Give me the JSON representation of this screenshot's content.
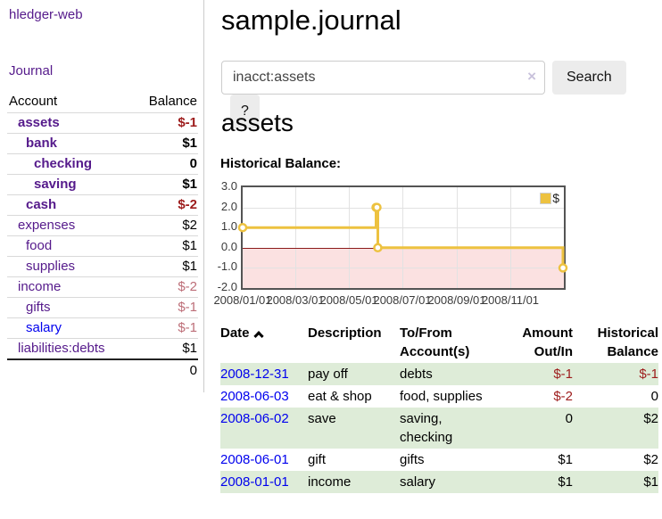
{
  "app": {
    "title": "hledger-web"
  },
  "colors": {
    "link_purple": "#551a8b",
    "link_blue": "#0000ee",
    "negative_strong": "#9d1c1c",
    "negative_soft": "#bd6e78",
    "stripe_green": "#deecd8",
    "series_yellow": "#edc240",
    "chart_negative_fill": "#fbe1e1",
    "chart_zero_line": "#8b1a1a",
    "chart_border": "#545454",
    "grid_line": "#e2e2e2"
  },
  "sidebar": {
    "journal_label": "Journal",
    "accounts_table": {
      "headers": {
        "account": "Account",
        "balance": "Balance"
      },
      "rows": [
        {
          "account": "assets",
          "indent": 0,
          "current": true,
          "balance": "$-1",
          "neg": "strong",
          "link": "purple"
        },
        {
          "account": "bank",
          "indent": 1,
          "current": true,
          "balance": "$1",
          "neg": "none",
          "link": "purple"
        },
        {
          "account": "checking",
          "indent": 2,
          "current": true,
          "balance": "0",
          "neg": "none",
          "link": "purple"
        },
        {
          "account": "saving",
          "indent": 2,
          "current": true,
          "balance": "$1",
          "neg": "none",
          "link": "purple"
        },
        {
          "account": "cash",
          "indent": 1,
          "current": true,
          "balance": "$-2",
          "neg": "strong",
          "link": "purple"
        },
        {
          "account": "expenses",
          "indent": 0,
          "current": false,
          "balance": "$2",
          "neg": "none",
          "link": "purple"
        },
        {
          "account": "food",
          "indent": 1,
          "current": false,
          "balance": "$1",
          "neg": "none",
          "link": "purple"
        },
        {
          "account": "supplies",
          "indent": 1,
          "current": false,
          "balance": "$1",
          "neg": "none",
          "link": "purple"
        },
        {
          "account": "income",
          "indent": 0,
          "current": false,
          "balance": "$-2",
          "neg": "soft",
          "link": "purple"
        },
        {
          "account": "gifts",
          "indent": 1,
          "current": false,
          "balance": "$-1",
          "neg": "soft",
          "link": "purple"
        },
        {
          "account": "salary",
          "indent": 1,
          "current": false,
          "balance": "$-1",
          "neg": "soft",
          "link": "blue"
        },
        {
          "account": "liabilities:debts",
          "indent": 0,
          "current": false,
          "balance": "$1",
          "neg": "none",
          "link": "purple"
        }
      ],
      "total": "0"
    }
  },
  "header": {
    "title": "sample.journal"
  },
  "search": {
    "query": "inacct:assets",
    "clear_icon": "×",
    "button_label": "Search",
    "help_label": "?"
  },
  "account_page": {
    "title": "assets",
    "chart_label": "Historical Balance:"
  },
  "chart_data": {
    "type": "line",
    "step": true,
    "title": "Historical Balance",
    "legend": [
      {
        "label": "$",
        "color": "#edc240"
      }
    ],
    "legend_position": "top-right",
    "grid": true,
    "xlim": [
      0,
      366
    ],
    "ylim": [
      -2,
      3
    ],
    "yticks": [
      {
        "v": 3,
        "label": "3.0"
      },
      {
        "v": 2,
        "label": "2.0"
      },
      {
        "v": 1,
        "label": "1.0"
      },
      {
        "v": 0,
        "label": "0.0"
      },
      {
        "v": -1,
        "label": "-1.0"
      },
      {
        "v": -2,
        "label": "-2.0"
      }
    ],
    "xticks": [
      {
        "v": 0,
        "label": "2008/01/01"
      },
      {
        "v": 60,
        "label": "2008/03/01"
      },
      {
        "v": 121,
        "label": "2008/05/01"
      },
      {
        "v": 182,
        "label": "2008/07/01"
      },
      {
        "v": 244,
        "label": "2008/09/01"
      },
      {
        "v": 305,
        "label": "2008/11/01"
      }
    ],
    "series": [
      {
        "name": "$",
        "color": "#edc240",
        "dates": [
          "2008-01-01",
          "2008-06-01",
          "2008-06-02",
          "2008-06-03",
          "2008-12-31"
        ],
        "x": [
          0,
          152,
          153,
          154,
          365
        ],
        "y": [
          1,
          2,
          2,
          0,
          -1
        ]
      }
    ]
  },
  "register_table": {
    "headers": {
      "date": "Date",
      "description": "Description",
      "accounts": "To/From Account(s)",
      "amount": "Amount Out/In",
      "balance": "Historical Balance"
    },
    "rows": [
      {
        "date": "2008-12-31",
        "description": "pay off",
        "accounts": "debts",
        "amount": "$-1",
        "amount_neg": true,
        "balance": "$-1",
        "balance_neg": true
      },
      {
        "date": "2008-06-03",
        "description": "eat & shop",
        "accounts": "food, supplies",
        "amount": "$-2",
        "amount_neg": true,
        "balance": "0",
        "balance_neg": false
      },
      {
        "date": "2008-06-02",
        "description": "save",
        "accounts": "saving, checking",
        "amount": "0",
        "amount_neg": false,
        "balance": "$2",
        "balance_neg": false
      },
      {
        "date": "2008-06-01",
        "description": "gift",
        "accounts": "gifts",
        "amount": "$1",
        "amount_neg": false,
        "balance": "$2",
        "balance_neg": false
      },
      {
        "date": "2008-01-01",
        "description": "income",
        "accounts": "salary",
        "amount": "$1",
        "amount_neg": false,
        "balance": "$1",
        "balance_neg": false
      }
    ]
  }
}
